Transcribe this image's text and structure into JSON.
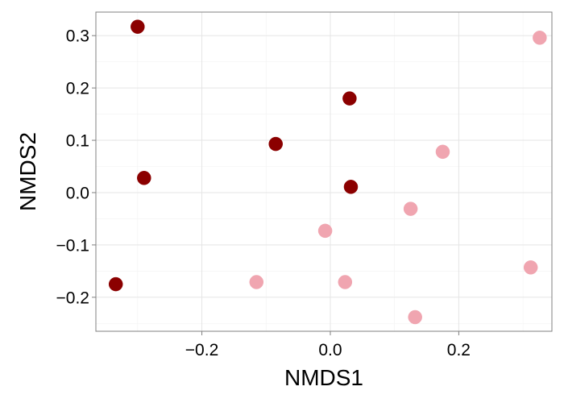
{
  "chart_data": {
    "type": "scatter",
    "title": "",
    "xlabel": "NMDS1",
    "ylabel": "NMDS2",
    "xlim": [
      -0.365,
      0.345
    ],
    "ylim": [
      -0.265,
      0.345
    ],
    "grid": true,
    "legend": "none",
    "x_ticks": [
      {
        "value": -0.2,
        "label": "−0.2"
      },
      {
        "value": 0.0,
        "label": "0.0"
      },
      {
        "value": 0.2,
        "label": "0.2"
      }
    ],
    "y_ticks": [
      {
        "value": 0.3,
        "label": "0.3"
      },
      {
        "value": 0.2,
        "label": "0.2"
      },
      {
        "value": 0.1,
        "label": "0.1"
      },
      {
        "value": 0.0,
        "label": "0.0"
      },
      {
        "value": -0.1,
        "label": "−0.1"
      },
      {
        "value": -0.2,
        "label": "−0.2"
      }
    ],
    "series": [
      {
        "color": "#8b0000",
        "points": [
          {
            "x": -0.3,
            "y": 0.317
          },
          {
            "x": 0.03,
            "y": 0.18
          },
          {
            "x": -0.085,
            "y": 0.093
          },
          {
            "x": -0.29,
            "y": 0.028
          },
          {
            "x": 0.032,
            "y": 0.011
          },
          {
            "x": -0.334,
            "y": -0.175
          }
        ]
      },
      {
        "color": "#f0a5b0",
        "points": [
          {
            "x": 0.326,
            "y": 0.296
          },
          {
            "x": 0.175,
            "y": 0.078
          },
          {
            "x": 0.125,
            "y": -0.031
          },
          {
            "x": -0.008,
            "y": -0.073
          },
          {
            "x": 0.312,
            "y": -0.143
          },
          {
            "x": -0.115,
            "y": -0.171
          },
          {
            "x": 0.023,
            "y": -0.171
          },
          {
            "x": 0.132,
            "y": -0.238
          }
        ]
      }
    ]
  }
}
